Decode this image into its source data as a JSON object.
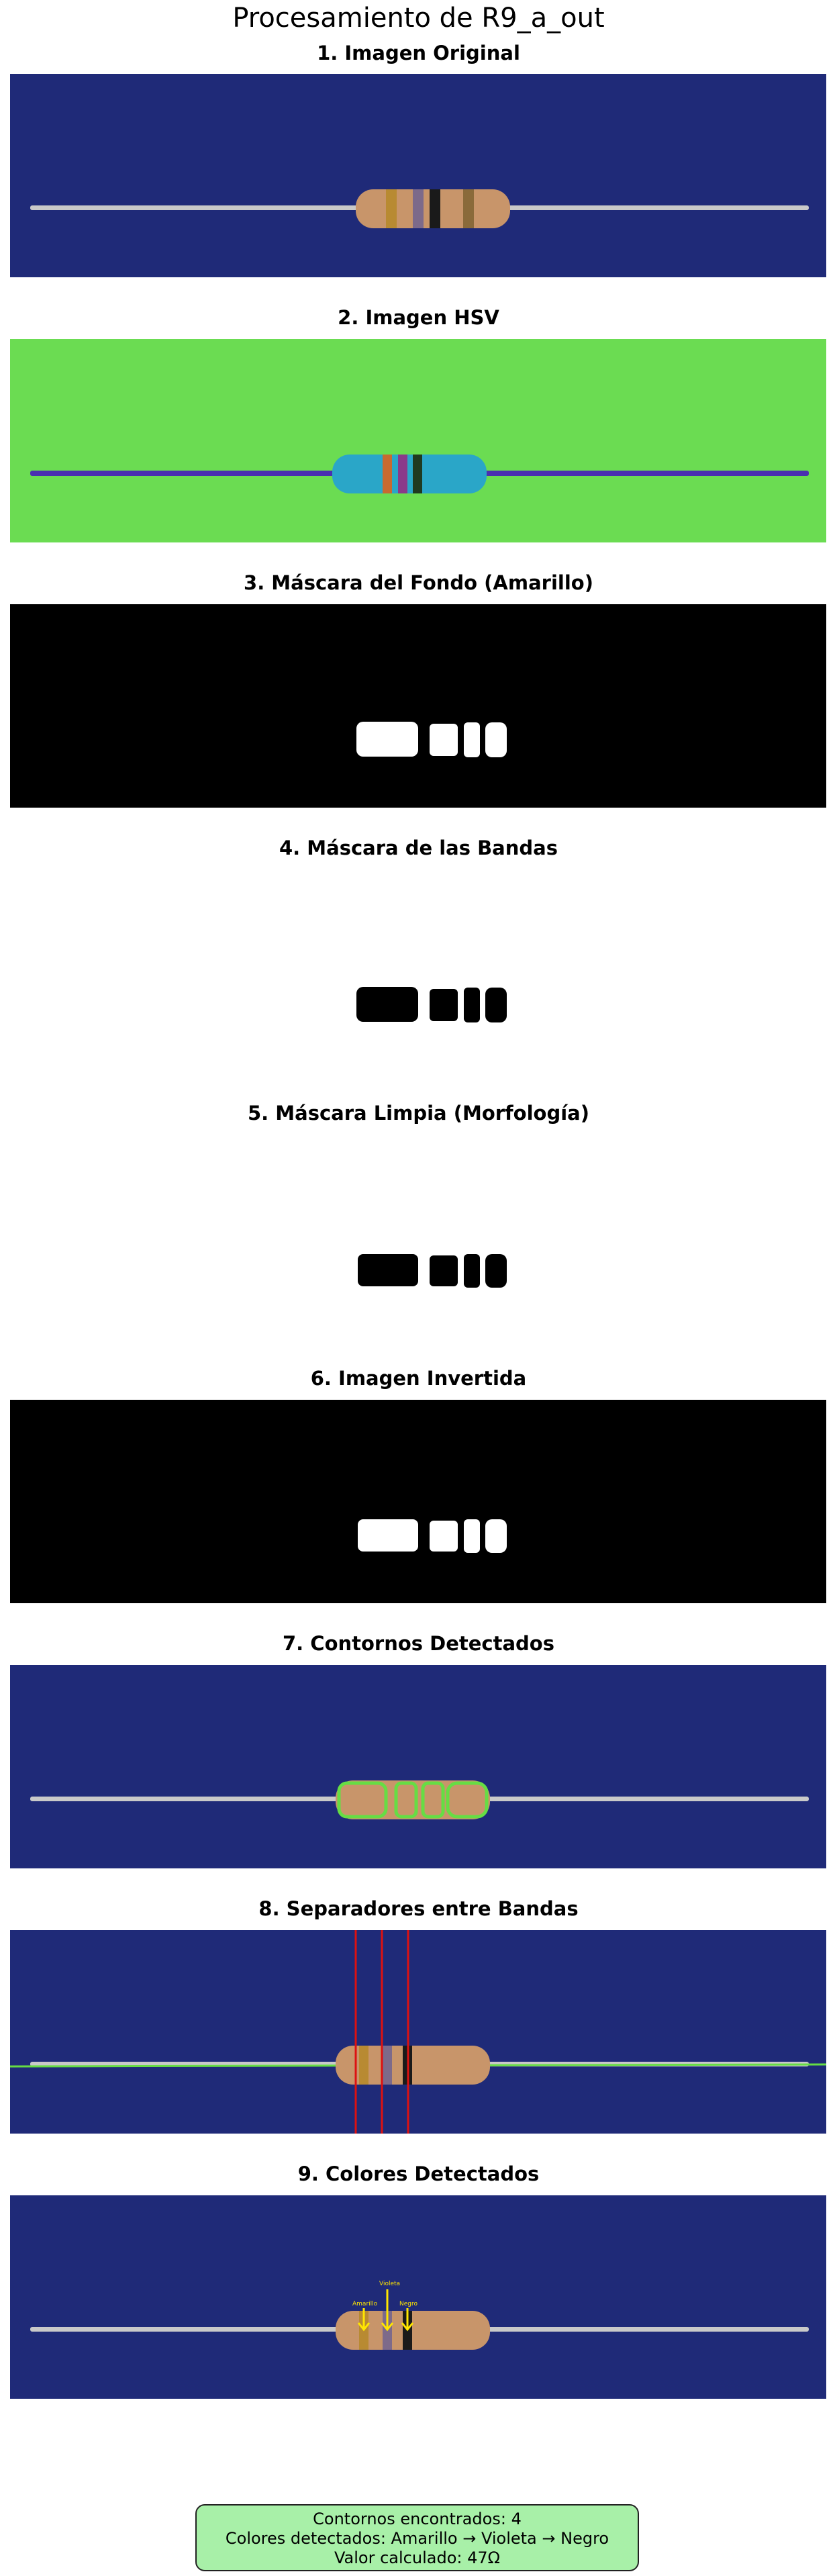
{
  "figure": {
    "title": "Procesamiento de R9_a_out"
  },
  "panels": [
    {
      "title": "1. Imagen Original"
    },
    {
      "title": "2. Imagen HSV"
    },
    {
      "title": "3. Máscara del Fondo (Amarillo)"
    },
    {
      "title": "4. Máscara de las Bandas"
    },
    {
      "title": "5. Máscara Limpia (Morfología)"
    },
    {
      "title": "6. Imagen Invertida"
    },
    {
      "title": "7. Contornos Detectados"
    },
    {
      "title": "8. Separadores entre Bandas"
    },
    {
      "title": "9. Colores Detectados"
    }
  ],
  "band_labels": {
    "first": "Amarillo",
    "second": "Violeta",
    "third": "Negro"
  },
  "colors": {
    "background_blue": "#1f2a78",
    "hsv_green": "#6bdc52",
    "resistor_body": "#c8956a",
    "separator_red": "#dd1111",
    "contour_green": "#66dd44",
    "arrow_yellow": "#ffe600",
    "info_box": "#a8f0a8"
  },
  "summary": {
    "line1": "Contornos encontrados: 4",
    "line2": "Colores detectados: Amarillo → Violeta → Negro",
    "line3": "Valor calculado: 47Ω"
  }
}
